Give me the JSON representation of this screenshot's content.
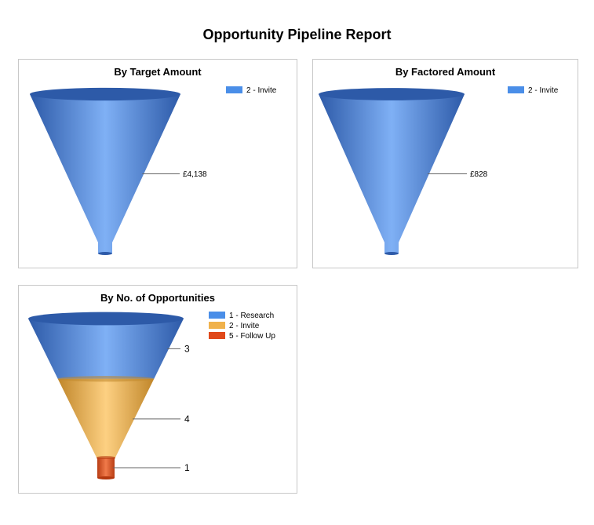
{
  "report": {
    "title": "Opportunity Pipeline Report"
  },
  "colors": {
    "blue": "#4a8ee8",
    "blue_dark": "#2d5aa8",
    "blue_light": "#7fb0f5",
    "orange": "#f0b24c",
    "orange_dark": "#c0862a",
    "orange_light": "#fdd082",
    "red": "#e0491a",
    "red_dark": "#b4380f",
    "red_light": "#f07a4a"
  },
  "chart_data": [
    {
      "type": "funnel",
      "title": "By Target Amount",
      "legend_position": "top-right",
      "series": [
        {
          "name": "2 - Invite",
          "value": 4138,
          "label": "£4,138",
          "color": "blue"
        }
      ]
    },
    {
      "type": "funnel",
      "title": "By Factored Amount",
      "legend_position": "top-right",
      "series": [
        {
          "name": "2 - Invite",
          "value": 828,
          "label": "£828",
          "color": "blue"
        }
      ]
    },
    {
      "type": "funnel",
      "title": "By No. of Opportunities",
      "legend_position": "top-right",
      "series": [
        {
          "name": "1 - Research",
          "value": 3,
          "label": "3",
          "color": "blue"
        },
        {
          "name": "2 - Invite",
          "value": 4,
          "label": "4",
          "color": "orange"
        },
        {
          "name": "5 - Follow Up",
          "value": 1,
          "label": "1",
          "color": "red"
        }
      ]
    }
  ]
}
